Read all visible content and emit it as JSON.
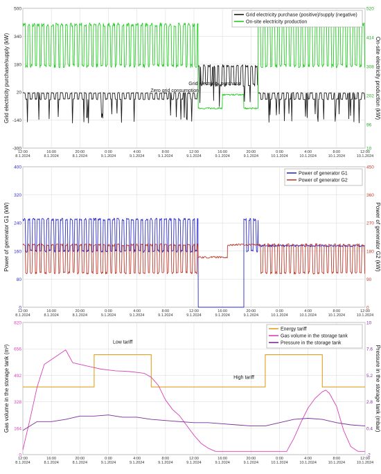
{
  "chart_data": [
    {
      "type": "line",
      "ylabel": "Grid electricity purchase/supply (kW)",
      "y2label": "On-site electricity production (kW)",
      "ylim": [
        -300,
        500
      ],
      "y_ticks": [
        -300,
        -140,
        20,
        180,
        340,
        500
      ],
      "y2lim": [
        10,
        520
      ],
      "y2_ticks": [
        10,
        96,
        202,
        308,
        414,
        520
      ],
      "x_ticks": [
        {
          "time": "12:00",
          "date": "8.1.2024"
        },
        {
          "time": "16:00",
          "date": "8.1.2024"
        },
        {
          "time": "20:00",
          "date": "8.1.2024"
        },
        {
          "time": "0:00",
          "date": "9.1.2024"
        },
        {
          "time": "4:00",
          "date": "9.1.2024"
        },
        {
          "time": "8:00",
          "date": "9.1.2024"
        },
        {
          "time": "12:00",
          "date": "9.1.2024"
        },
        {
          "time": "16:00",
          "date": "9.1.2024"
        },
        {
          "time": "20:00",
          "date": "9.1.2024"
        },
        {
          "time": "0:00",
          "date": "10.1.2024"
        },
        {
          "time": "4:00",
          "date": "10.1.2024"
        },
        {
          "time": "8:00",
          "date": "10.1.2024"
        },
        {
          "time": "12:00",
          "date": "10.1.2024"
        }
      ],
      "grid": true,
      "legend_position": "top-right",
      "series": [
        {
          "name": "Grid electricity purchase (positive)/supply (negative)",
          "color": "#1a1a1a",
          "axis": "left",
          "segments": [
            [
              0,
              24.6,
              15,
              -20,
              50
            ],
            [
              24.6,
              33,
              170,
              60,
              240
            ],
            [
              33,
              48,
              15,
              -20,
              50
            ]
          ]
        },
        {
          "name": "On-site electricity production",
          "color": "#22cc22",
          "axis": "right",
          "segments": [
            [
              0,
              24.6,
              460,
              310,
              480
            ],
            [
              24.6,
              28,
              155,
              150,
              160
            ],
            [
              28,
              31,
              205,
              200,
              210
            ],
            [
              31,
              33,
              155,
              150,
              160
            ],
            [
              33,
              48,
              460,
              310,
              480
            ]
          ]
        }
      ],
      "annotations": [
        {
          "text": "Zero grid consumption",
          "hour": 21.3,
          "value": 20
        },
        {
          "text": "Grid electricity purchase",
          "hour": 26.9,
          "value": 60
        }
      ]
    },
    {
      "type": "line",
      "ylabel": "Power of generator G1 (kW)",
      "y2label": "Power of generator G2 (kW)",
      "ylim": [
        0,
        400
      ],
      "y_ticks": [
        0,
        80,
        160,
        240,
        320,
        400
      ],
      "y2lim": [
        0,
        450
      ],
      "y2_ticks": [
        0,
        90,
        180,
        270,
        360,
        450
      ],
      "x_ticks": [
        {
          "time": "12:00",
          "date": "8.1.2024"
        },
        {
          "time": "16:00",
          "date": "8.1.2024"
        },
        {
          "time": "20:00",
          "date": "8.1.2024"
        },
        {
          "time": "0:00",
          "date": "9.1.2024"
        },
        {
          "time": "4:00",
          "date": "9.1.2024"
        },
        {
          "time": "8:00",
          "date": "9.1.2024"
        },
        {
          "time": "12:00",
          "date": "9.1.2024"
        },
        {
          "time": "16:00",
          "date": "9.1.2024"
        },
        {
          "time": "20:00",
          "date": "9.1.2024"
        },
        {
          "time": "0:00",
          "date": "10.1.2024"
        },
        {
          "time": "4:00",
          "date": "10.1.2024"
        },
        {
          "time": "8:00",
          "date": "10.1.2024"
        },
        {
          "time": "12:00",
          "date": "10.1.2024"
        }
      ],
      "grid": true,
      "legend_position": "top-right",
      "series": [
        {
          "name": "Power of generator G1",
          "color": "#2a2acc",
          "axis": "left",
          "segments": [
            [
              0,
              24.6,
              250,
              160,
              252
            ],
            [
              24.6,
              31,
              0,
              0,
              0
            ],
            [
              31,
              33,
              250,
              160,
              252
            ],
            [
              33,
              48,
              175,
              170,
              180
            ]
          ]
        },
        {
          "name": "Power of generator G2",
          "color": "#c0392b",
          "axis": "right",
          "segments": [
            [
              0,
              24.6,
              200,
              110,
              204
            ],
            [
              24.6,
              28.7,
              160,
              155,
              165
            ],
            [
              28.7,
              33,
              200,
              195,
              205
            ],
            [
              33,
              48,
              200,
              110,
              204
            ]
          ]
        }
      ]
    },
    {
      "type": "line",
      "ylabel": "Gas volume in the storage tank (m³)",
      "y2label": "Pressure in the storage tank (mbar)",
      "ylim": [
        0,
        820
      ],
      "y_ticks": [
        0,
        164,
        328,
        492,
        656,
        820
      ],
      "y2lim": [
        -2,
        10
      ],
      "y2_ticks": [
        -2,
        0.4,
        2.8,
        5.2,
        7.6,
        10
      ],
      "x_ticks": [
        {
          "time": "12:00",
          "date": "8.1.2024"
        },
        {
          "time": "16:00",
          "date": "8.1.2024"
        },
        {
          "time": "20:00",
          "date": "8.1.2024"
        },
        {
          "time": "0:00",
          "date": "9.1.2024"
        },
        {
          "time": "4:00",
          "date": "9.1.2024"
        },
        {
          "time": "8:00",
          "date": "9.1.2024"
        },
        {
          "time": "12:00",
          "date": "9.1.2024"
        },
        {
          "time": "16:00",
          "date": "9.1.2024"
        },
        {
          "time": "20:00",
          "date": "9.1.2024"
        },
        {
          "time": "0:00",
          "date": "10.1.2024"
        },
        {
          "time": "4:00",
          "date": "10.1.2024"
        },
        {
          "time": "8:00",
          "date": "10.1.2024"
        },
        {
          "time": "12:00",
          "date": "10.1.2024"
        }
      ],
      "grid": true,
      "legend_position": "top-right",
      "series": [
        {
          "name": "Energy tariff",
          "color": "#e0a020",
          "axis": "left",
          "x": [
            0,
            10,
            10,
            18,
            18,
            34,
            34,
            42,
            42,
            48
          ],
          "y": [
            420,
            420,
            620,
            620,
            420,
            420,
            620,
            620,
            420,
            420
          ]
        },
        {
          "name": "Gas volume in the storage tank",
          "color": "#d83fb8",
          "axis": "left",
          "x": [
            0,
            1,
            2,
            3,
            4,
            5,
            6,
            6.5,
            7,
            8,
            9,
            10,
            11,
            12,
            13,
            14,
            15,
            16,
            17,
            18,
            19,
            20,
            21,
            22,
            23,
            24,
            25,
            26,
            27,
            28,
            29,
            30,
            31,
            32,
            33,
            34,
            35,
            36,
            37,
            38,
            39,
            40,
            41,
            42,
            42.5,
            43,
            44,
            45,
            46,
            47,
            48
          ],
          "y": [
            30,
            220,
            420,
            560,
            590,
            620,
            650,
            610,
            570,
            560,
            550,
            540,
            530,
            525,
            520,
            518,
            515,
            510,
            505,
            480,
            430,
            340,
            280,
            240,
            180,
            120,
            70,
            40,
            20,
            20,
            20,
            20,
            20,
            20,
            20,
            20,
            20,
            20,
            20,
            100,
            200,
            290,
            350,
            390,
            400,
            380,
            300,
            150,
            50,
            20,
            20
          ]
        },
        {
          "name": "Pressure in the storage tank",
          "color": "#7a2a9a",
          "axis": "right",
          "x": [
            0,
            2,
            4,
            6,
            8,
            10,
            12,
            14,
            16,
            18,
            20,
            22,
            24,
            26,
            28,
            30,
            32,
            34,
            36,
            38,
            40,
            42,
            44,
            46,
            48
          ],
          "y": [
            0.2,
            1.0,
            1.0,
            1.2,
            1.5,
            1.5,
            1.6,
            1.4,
            1.4,
            1.2,
            1.1,
            1.0,
            0.9,
            0.9,
            0.8,
            0.7,
            0.6,
            0.6,
            0.9,
            1.2,
            1.3,
            1.2,
            0.9,
            0.7,
            0.6
          ]
        }
      ],
      "annotations": [
        {
          "text": "Low tariff",
          "hour": 14,
          "value": 690
        },
        {
          "text": "High tariff",
          "hour": 31,
          "value": 470
        }
      ]
    }
  ]
}
